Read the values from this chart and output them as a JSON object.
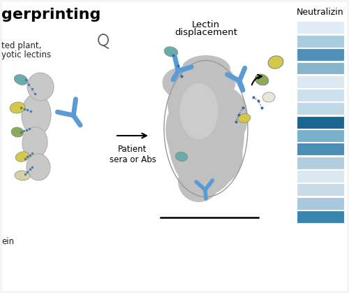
{
  "title_visible": "gerprinting",
  "background_color": "#f5f5f5",
  "panel_bg": "#ffffff",
  "heatmap_colors": [
    "#3a85b0",
    "#a8c8de",
    "#c8dce8",
    "#dce8f0",
    "#b0cedd",
    "#4a8eb8",
    "#7ab0cc",
    "#1a6690",
    "#c0d8e8",
    "#cce0ec",
    "#dce8f2",
    "#88b4cc",
    "#5090b8",
    "#a8cce0",
    "#e0ecf5"
  ],
  "left_text1": "ted plant,",
  "left_text2": "yotic lectins",
  "left_text3": "ein",
  "arrow_label": "Patient\nsera or Abs",
  "center_label_line1": "Lectin",
  "center_label_line2": "displacement",
  "neutralizing_label": "Neutralizin",
  "antibody_color": "#5b9bd5",
  "lectin_teal": "#6aacaa",
  "lectin_yellow": "#d4c84a",
  "lectin_green": "#8aaa5a",
  "lectin_cream": "#d8d0a8",
  "figsize": [
    5.0,
    4.19
  ],
  "dpi": 100
}
